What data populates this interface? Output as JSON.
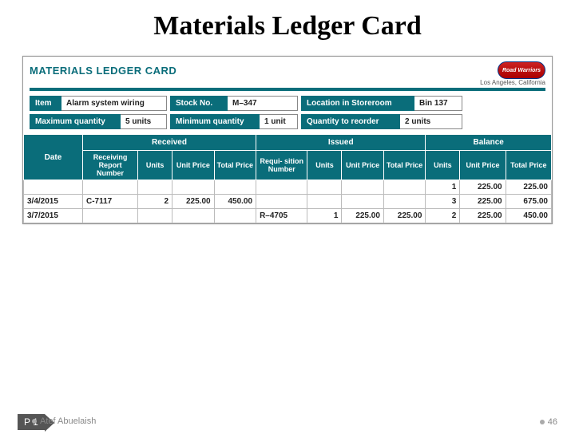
{
  "colors": {
    "teal": "#0a6d7a",
    "border": "#bbbbbb",
    "text": "#222222",
    "muted": "#888888"
  },
  "slide": {
    "title": "Materials Ledger Card",
    "tag": "P 1",
    "author": "Atef Abuelaish",
    "page": "46"
  },
  "card": {
    "header_title": "MATERIALS LEDGER CARD",
    "company": "Road Warriors",
    "location": "Los Angeles, California",
    "info": [
      [
        {
          "label": "Item",
          "value": "Alarm system wiring",
          "lw": 40,
          "vw": 132
        },
        {
          "label": "Stock No.",
          "value": "M–347",
          "lw": 72,
          "vw": 88
        },
        {
          "label": "Location in Storeroom",
          "value": "Bin 137",
          "lw": 142,
          "vw": 60
        }
      ],
      [
        {
          "label": "Maximum quantity",
          "value": "5 units",
          "lw": 114,
          "vw": 58
        },
        {
          "label": "Minimum quantity",
          "value": "1 unit",
          "lw": 112,
          "vw": 48
        },
        {
          "label": "Quantity to reorder",
          "value": "2 units",
          "lw": 124,
          "vw": 78
        }
      ]
    ],
    "sections": {
      "date": "Date",
      "received": "Received",
      "issued": "Issued",
      "balance": "Balance"
    },
    "columns": {
      "recv_report": "Receiving\nReport\nNumber",
      "units": "Units",
      "unit_price": "Unit\nPrice",
      "total_price": "Total\nPrice",
      "req_number": "Requi-\nsition\nNumber"
    },
    "rows": [
      {
        "date": "",
        "recv_no": "",
        "r_units": "",
        "r_uprice": "",
        "r_tprice": "",
        "req_no": "",
        "i_units": "",
        "i_uprice": "",
        "i_tprice": "",
        "b_units": "1",
        "b_uprice": "225.00",
        "b_tprice": "225.00"
      },
      {
        "date": "3/4/2015",
        "recv_no": "C-7117",
        "r_units": "2",
        "r_uprice": "225.00",
        "r_tprice": "450.00",
        "req_no": "",
        "i_units": "",
        "i_uprice": "",
        "i_tprice": "",
        "b_units": "3",
        "b_uprice": "225.00",
        "b_tprice": "675.00"
      },
      {
        "date": "3/7/2015",
        "recv_no": "",
        "r_units": "",
        "r_uprice": "",
        "r_tprice": "",
        "req_no": "R–4705",
        "i_units": "1",
        "i_uprice": "225.00",
        "i_tprice": "225.00",
        "b_units": "2",
        "b_uprice": "225.00",
        "b_tprice": "450.00"
      }
    ]
  }
}
